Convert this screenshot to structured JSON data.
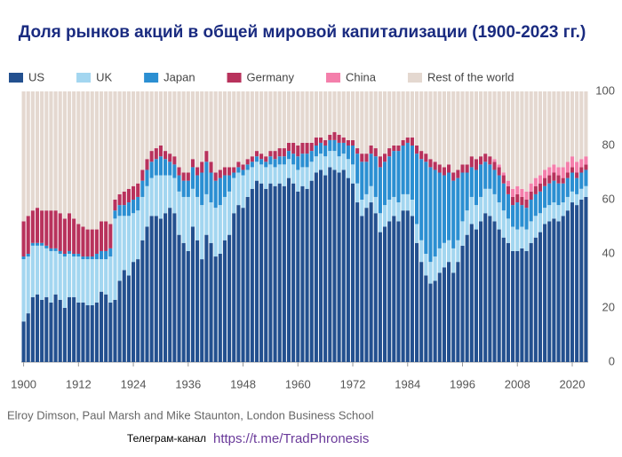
{
  "chart_data": {
    "type": "stacked_bar",
    "title": "Доля рынков акций в общей мировой капитализации (1900-2023 гг.)",
    "source": "Elroy Dimson, Paul Marsh and Mike Staunton, London Business School",
    "channel_label": "Телеграм-канал",
    "channel_url": "https://t.me/TradPhronesis",
    "x": [
      1900,
      1901,
      1902,
      1903,
      1904,
      1905,
      1906,
      1907,
      1908,
      1909,
      1910,
      1911,
      1912,
      1913,
      1914,
      1915,
      1916,
      1917,
      1918,
      1919,
      1920,
      1921,
      1922,
      1923,
      1924,
      1925,
      1926,
      1927,
      1928,
      1929,
      1930,
      1931,
      1932,
      1933,
      1934,
      1935,
      1936,
      1937,
      1938,
      1939,
      1940,
      1941,
      1942,
      1943,
      1944,
      1945,
      1946,
      1947,
      1948,
      1949,
      1950,
      1951,
      1952,
      1953,
      1954,
      1955,
      1956,
      1957,
      1958,
      1959,
      1960,
      1961,
      1962,
      1963,
      1964,
      1965,
      1966,
      1967,
      1968,
      1969,
      1970,
      1971,
      1972,
      1973,
      1974,
      1975,
      1976,
      1977,
      1978,
      1979,
      1980,
      1981,
      1982,
      1983,
      1984,
      1985,
      1986,
      1987,
      1988,
      1989,
      1990,
      1991,
      1992,
      1993,
      1994,
      1995,
      1996,
      1997,
      1998,
      1999,
      2000,
      2001,
      2002,
      2003,
      2004,
      2005,
      2006,
      2007,
      2008,
      2009,
      2010,
      2011,
      2012,
      2013,
      2014,
      2015,
      2016,
      2017,
      2018,
      2019,
      2020,
      2021,
      2022,
      2023
    ],
    "xlim": [
      1899.5,
      2023.5
    ],
    "xticks": [
      1900,
      1912,
      1924,
      1936,
      1948,
      1960,
      1972,
      1984,
      1996,
      2008,
      2020
    ],
    "ylim": [
      0,
      100
    ],
    "yticks": [
      0,
      20,
      40,
      60,
      80,
      100
    ],
    "series": [
      {
        "name": "US",
        "color": "#23508f",
        "values": [
          15,
          18,
          24,
          25,
          23,
          24,
          22,
          25,
          23,
          20,
          24,
          24,
          22,
          22,
          21,
          21,
          22,
          26,
          25,
          22,
          23,
          30,
          34,
          32,
          37,
          38,
          45,
          50,
          54,
          54,
          53,
          55,
          57,
          55,
          47,
          44,
          41,
          50,
          45,
          38,
          47,
          44,
          39,
          40,
          45,
          47,
          55,
          58,
          57,
          61,
          64,
          67,
          66,
          64,
          66,
          65,
          66,
          65,
          68,
          66,
          63,
          65,
          64,
          67,
          70,
          71,
          69,
          72,
          71,
          70,
          71,
          68,
          66,
          59,
          54,
          57,
          59,
          55,
          48,
          50,
          52,
          54,
          52,
          56,
          56,
          54,
          44,
          37,
          32,
          29,
          30,
          33,
          35,
          37,
          33,
          37,
          43,
          47,
          51,
          49,
          52,
          55,
          54,
          52,
          49,
          46,
          44,
          41,
          41,
          42,
          41,
          44,
          46,
          48,
          51,
          52,
          53,
          52,
          54,
          56,
          59,
          58,
          60,
          61
        ]
      },
      {
        "name": "UK",
        "color": "#a3d6f0",
        "values": [
          23,
          21,
          19,
          18,
          20,
          18,
          19,
          16,
          17,
          19,
          16,
          15,
          17,
          16,
          17,
          17,
          16,
          12,
          13,
          17,
          30,
          24,
          20,
          22,
          18,
          18,
          16,
          15,
          14,
          15,
          16,
          14,
          12,
          13,
          16,
          17,
          20,
          14,
          16,
          20,
          15,
          15,
          18,
          18,
          16,
          16,
          13,
          12,
          12,
          10,
          8,
          7,
          7,
          8,
          7,
          7,
          7,
          8,
          7,
          7,
          8,
          7,
          8,
          7,
          6,
          6,
          7,
          6,
          7,
          6,
          6,
          7,
          7,
          7,
          6,
          5,
          6,
          6,
          7,
          8,
          8,
          7,
          7,
          6,
          6,
          6,
          7,
          8,
          8,
          8,
          9,
          9,
          9,
          8,
          9,
          8,
          9,
          9,
          10,
          9,
          9,
          9,
          10,
          10,
          10,
          10,
          9,
          9,
          8,
          8,
          8,
          8,
          8,
          7,
          6,
          6,
          6,
          6,
          5,
          5,
          4,
          4,
          4,
          4
        ]
      },
      {
        "name": "Japan",
        "color": "#2b8fd2",
        "values": [
          1,
          1,
          1,
          1,
          1,
          1,
          1,
          1,
          1,
          1,
          1,
          1,
          1,
          1,
          1,
          1,
          2,
          3,
          3,
          3,
          3,
          4,
          4,
          5,
          5,
          5,
          6,
          6,
          6,
          6,
          7,
          6,
          5,
          5,
          6,
          6,
          6,
          8,
          8,
          12,
          12,
          11,
          10,
          10,
          8,
          6,
          2,
          2,
          2,
          2,
          2,
          2,
          2,
          2,
          3,
          3,
          3,
          3,
          3,
          4,
          5,
          5,
          5,
          4,
          4,
          4,
          4,
          4,
          4,
          5,
          4,
          5,
          7,
          11,
          14,
          12,
          12,
          15,
          17,
          16,
          16,
          17,
          19,
          18,
          19,
          20,
          26,
          30,
          34,
          35,
          32,
          28,
          25,
          25,
          25,
          23,
          18,
          14,
          11,
          13,
          12,
          10,
          9,
          9,
          10,
          10,
          9,
          8,
          10,
          8,
          8,
          8,
          8,
          8,
          8,
          8,
          8,
          8,
          7,
          7,
          7,
          6,
          6,
          6
        ]
      },
      {
        "name": "Germany",
        "color": "#b8325c",
        "values": [
          13,
          14,
          12,
          13,
          12,
          13,
          14,
          14,
          14,
          13,
          14,
          13,
          11,
          11,
          10,
          10,
          9,
          11,
          11,
          9,
          4,
          4,
          5,
          5,
          5,
          5,
          4,
          4,
          4,
          4,
          4,
          3,
          3,
          3,
          3,
          3,
          3,
          3,
          3,
          4,
          4,
          4,
          3,
          3,
          3,
          3,
          2,
          2,
          2,
          2,
          2,
          2,
          2,
          2,
          2,
          3,
          3,
          3,
          3,
          4,
          4,
          4,
          4,
          3,
          3,
          2,
          2,
          2,
          3,
          3,
          2,
          2,
          2,
          2,
          3,
          3,
          3,
          3,
          4,
          3,
          3,
          2,
          2,
          2,
          2,
          3,
          3,
          3,
          3,
          3,
          3,
          3,
          3,
          3,
          3,
          3,
          3,
          3,
          4,
          4,
          3,
          3,
          3,
          3,
          3,
          3,
          3,
          3,
          3,
          3,
          3,
          3,
          3,
          3,
          3,
          3,
          3,
          3,
          2,
          2,
          2,
          2,
          2,
          2
        ]
      },
      {
        "name": "China",
        "color": "#f47fab",
        "values": [
          0,
          0,
          0,
          0,
          0,
          0,
          0,
          0,
          0,
          0,
          0,
          0,
          0,
          0,
          0,
          0,
          0,
          0,
          0,
          0,
          0,
          0,
          0,
          0,
          0,
          0,
          0,
          0,
          0,
          0,
          0,
          0,
          0,
          0,
          0,
          0,
          0,
          0,
          0,
          0,
          0,
          0,
          0,
          0,
          0,
          0,
          0,
          0,
          0,
          0,
          0,
          0,
          0,
          0,
          0,
          0,
          0,
          0,
          0,
          0,
          0,
          0,
          0,
          0,
          0,
          0,
          0,
          0,
          0,
          0,
          0,
          0,
          0,
          0,
          0,
          0,
          0,
          0,
          0,
          0,
          0,
          0,
          0,
          0,
          0,
          0,
          0,
          0,
          0,
          0,
          0,
          0,
          0,
          0,
          0,
          0,
          0,
          0,
          0,
          0,
          0,
          0,
          0,
          1,
          1,
          1,
          2,
          3,
          3,
          3,
          3,
          3,
          3,
          3,
          3,
          3,
          3,
          3,
          4,
          4,
          4,
          4,
          3,
          3
        ]
      },
      {
        "name": "Rest of the world",
        "color": "#e4d8d0",
        "values": [
          48,
          46,
          44,
          43,
          44,
          44,
          44,
          44,
          45,
          47,
          45,
          47,
          49,
          50,
          51,
          51,
          51,
          48,
          48,
          49,
          40,
          38,
          37,
          36,
          35,
          34,
          29,
          25,
          22,
          21,
          20,
          22,
          23,
          24,
          28,
          30,
          30,
          25,
          28,
          26,
          22,
          26,
          30,
          29,
          28,
          28,
          28,
          26,
          27,
          25,
          24,
          22,
          23,
          24,
          22,
          22,
          21,
          21,
          19,
          19,
          20,
          19,
          19,
          19,
          17,
          17,
          18,
          16,
          15,
          16,
          17,
          18,
          18,
          21,
          23,
          23,
          20,
          21,
          24,
          23,
          21,
          20,
          20,
          18,
          17,
          17,
          20,
          22,
          23,
          25,
          26,
          27,
          28,
          27,
          30,
          29,
          27,
          27,
          24,
          25,
          24,
          23,
          24,
          25,
          27,
          30,
          33,
          36,
          35,
          36,
          37,
          34,
          32,
          31,
          29,
          28,
          27,
          28,
          28,
          26,
          24,
          26,
          25,
          24
        ]
      }
    ]
  }
}
